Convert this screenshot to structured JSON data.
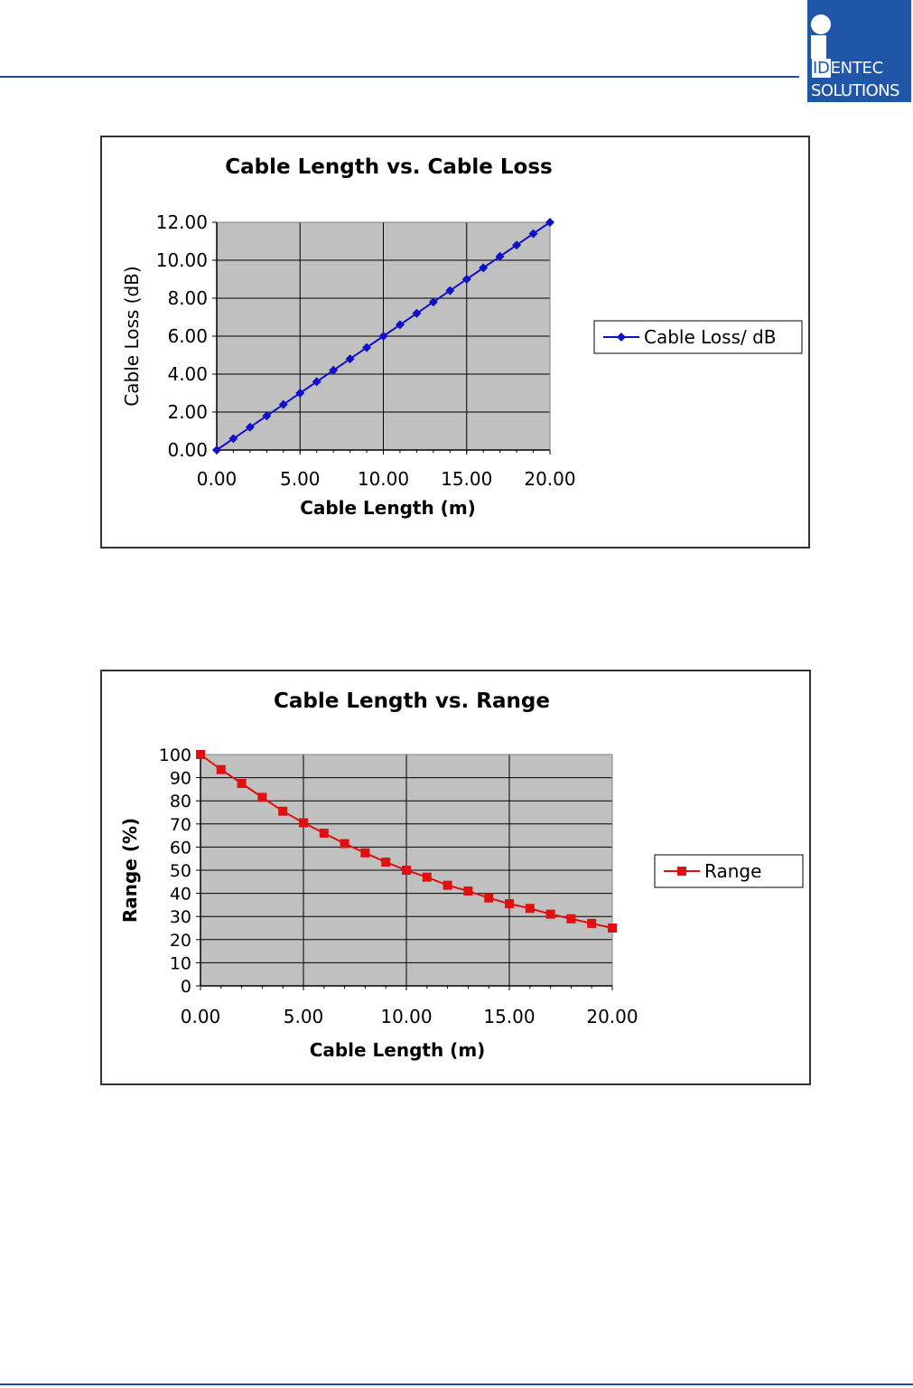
{
  "header": {
    "logo": {
      "line1_highlight": "ID",
      "line1_rest": "ENTEC",
      "line2": "SOLUTIONS"
    }
  },
  "chart_data": [
    {
      "type": "line",
      "title": "Cable Length vs. Cable Loss",
      "xlabel": "Cable Length (m)",
      "ylabel": "Cable Loss (dB)",
      "xlim": [
        0,
        20
      ],
      "ylim": [
        0,
        12
      ],
      "x_ticks": [
        "0.00",
        "5.00",
        "10.00",
        "15.00",
        "20.00"
      ],
      "y_ticks": [
        "0.00",
        "2.00",
        "4.00",
        "6.00",
        "8.00",
        "10.00",
        "12.00"
      ],
      "grid": true,
      "legend_position": "right",
      "series": [
        {
          "name": "Cable Loss/ dB",
          "color": "#1010c8",
          "marker": "diamond",
          "x": [
            0,
            1,
            2,
            3,
            4,
            5,
            6,
            7,
            8,
            9,
            10,
            11,
            12,
            13,
            14,
            15,
            16,
            17,
            18,
            19,
            20
          ],
          "values": [
            0,
            0.6,
            1.2,
            1.8,
            2.4,
            3.0,
            3.6,
            4.2,
            4.8,
            5.4,
            6.0,
            6.6,
            7.2,
            7.8,
            8.4,
            9.0,
            9.6,
            10.2,
            10.8,
            11.4,
            12.0
          ]
        }
      ]
    },
    {
      "type": "line",
      "title": "Cable Length vs. Range",
      "xlabel": "Cable Length (m)",
      "ylabel": "Range (%)",
      "xlim": [
        0,
        20
      ],
      "ylim": [
        0,
        100
      ],
      "x_ticks": [
        "0.00",
        "5.00",
        "10.00",
        "15.00",
        "20.00"
      ],
      "y_ticks": [
        "0",
        "10",
        "20",
        "30",
        "40",
        "50",
        "60",
        "70",
        "80",
        "90",
        "100"
      ],
      "grid": true,
      "legend_position": "right",
      "series": [
        {
          "name": "Range",
          "color": "#e01010",
          "marker": "square",
          "x": [
            0,
            1,
            2,
            3,
            4,
            5,
            6,
            7,
            8,
            9,
            10,
            11,
            12,
            13,
            14,
            15,
            16,
            17,
            18,
            19,
            20
          ],
          "values": [
            100,
            93.5,
            87.5,
            81.5,
            75.5,
            70.5,
            66,
            61.5,
            57.5,
            53.5,
            50,
            47,
            43.5,
            41,
            38,
            35.5,
            33.5,
            31,
            29,
            27,
            25
          ]
        }
      ]
    }
  ]
}
